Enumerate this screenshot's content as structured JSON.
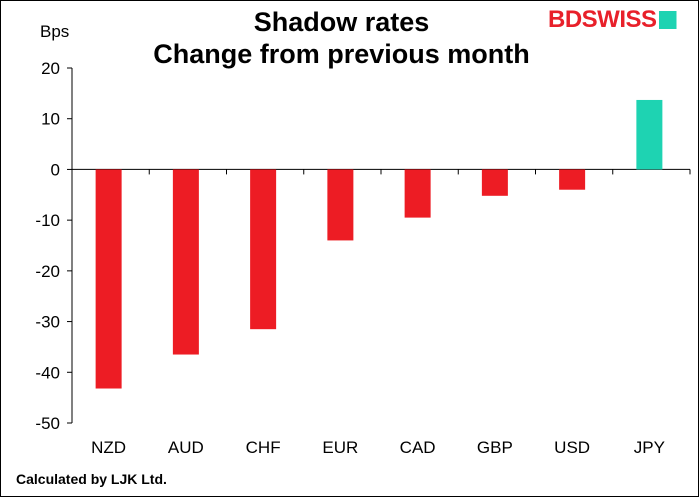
{
  "title_line1": "Shadow rates",
  "title_line2": "Change from previous month",
  "logo": {
    "text_a": "BD",
    "text_b": "SWISS",
    "accent_color": "#1ed3b2",
    "brand_color": "#e8202a"
  },
  "footer": "Calculated by LJK Ltd.",
  "chart_data": {
    "type": "bar",
    "title": "Shadow rates\nChange from previous month",
    "ylabel": "Bps",
    "xlabel": "",
    "categories": [
      "NZD",
      "AUD",
      "CHF",
      "EUR",
      "CAD",
      "GBP",
      "USD",
      "JPY"
    ],
    "values": [
      -43.2,
      -36.5,
      -31.5,
      -14.0,
      -9.5,
      -5.2,
      -4.0,
      13.7
    ],
    "ylim": [
      -50,
      20
    ],
    "yticks": [
      20,
      10,
      0,
      -10,
      -20,
      -30,
      -40,
      -50
    ],
    "colors": {
      "negative": "#ed1c24",
      "positive": "#1ed3b2"
    },
    "grid": false,
    "legend": "none"
  }
}
